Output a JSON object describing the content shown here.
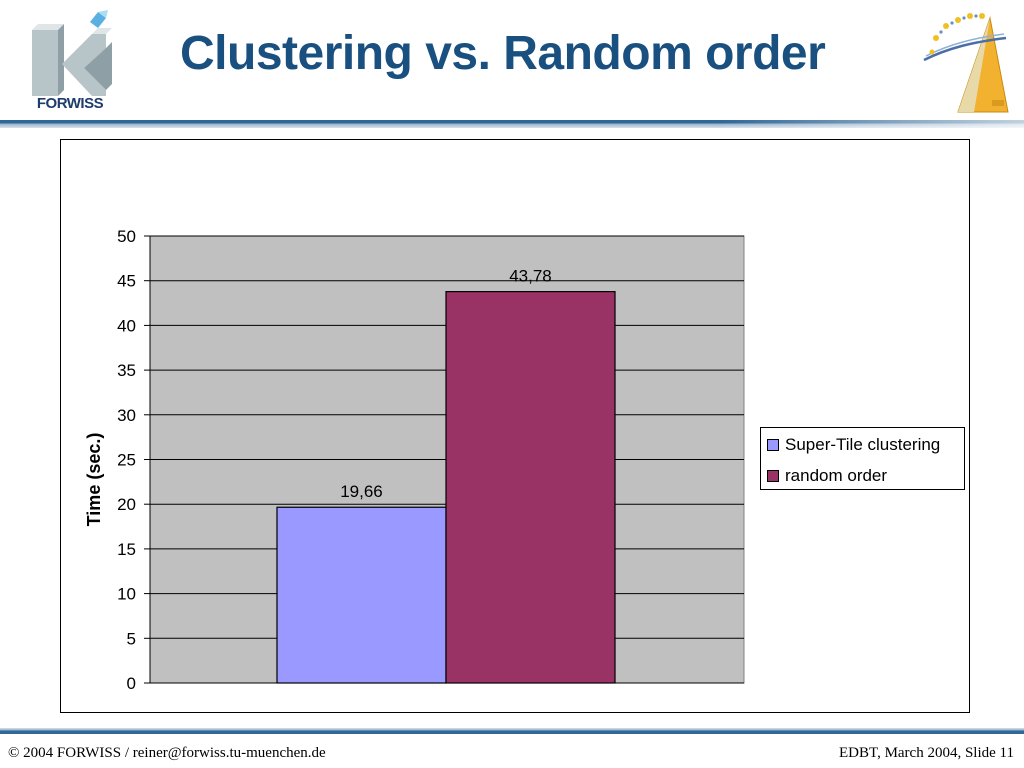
{
  "header": {
    "title": "Clustering vs. Random order",
    "left_logo_text": "FORWISS",
    "left_logo_icon": "forwiss-logo-icon",
    "right_logo_icon": "edbt-triangle-logo-icon"
  },
  "chart_data": {
    "type": "bar",
    "categories": [
      ""
    ],
    "series": [
      {
        "name": "Super-Tile clustering",
        "values": [
          19.66
        ],
        "color": "#9999ff",
        "label": "19,66"
      },
      {
        "name": "random order",
        "values": [
          43.78
        ],
        "color": "#993366",
        "label": "43,78"
      }
    ],
    "title": "",
    "xlabel": "",
    "ylabel": "Time (sec.)",
    "ylim": [
      0,
      50
    ],
    "yticks": [
      0,
      5,
      10,
      15,
      20,
      25,
      30,
      35,
      40,
      45,
      50
    ],
    "ytick_labels": [
      "0",
      "5",
      "10",
      "15",
      "20",
      "25",
      "30",
      "35",
      "40",
      "45",
      "50"
    ],
    "grid": true,
    "plot_background": "#c0c0c0",
    "legend": "right"
  },
  "legend": {
    "item1": "Super-Tile clustering",
    "item2": "random order"
  },
  "footer": {
    "left": "© 2004 FORWISS  /  reiner@forwiss.tu-muenchen.de",
    "right": "EDBT, March 2004, Slide 11"
  }
}
